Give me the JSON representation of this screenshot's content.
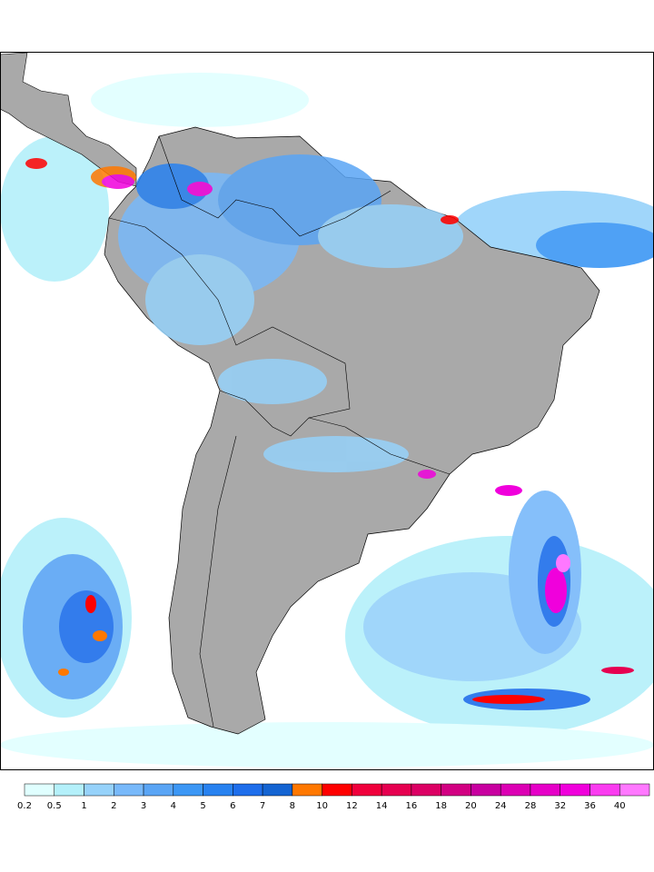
{
  "colorbar": {
    "ticks": [
      0.2,
      0.5,
      1,
      2,
      3,
      4,
      5,
      6,
      7,
      8,
      10,
      12,
      14,
      16,
      18,
      20,
      24,
      28,
      32,
      36,
      40
    ],
    "colors": [
      "#e0ffff",
      "#b4f0fa",
      "#96d2fa",
      "#78b9fa",
      "#5aa5f5",
      "#3c97f5",
      "#2882f0",
      "#1e6eeb",
      "#1464d2",
      "#ff7800",
      "#ff0000",
      "#f0003c",
      "#e60050",
      "#dc0064",
      "#d20082",
      "#c800a0",
      "#dc00b4",
      "#e600c8",
      "#f000dc",
      "#fa3cf0",
      "#ff78ff"
    ]
  }
}
